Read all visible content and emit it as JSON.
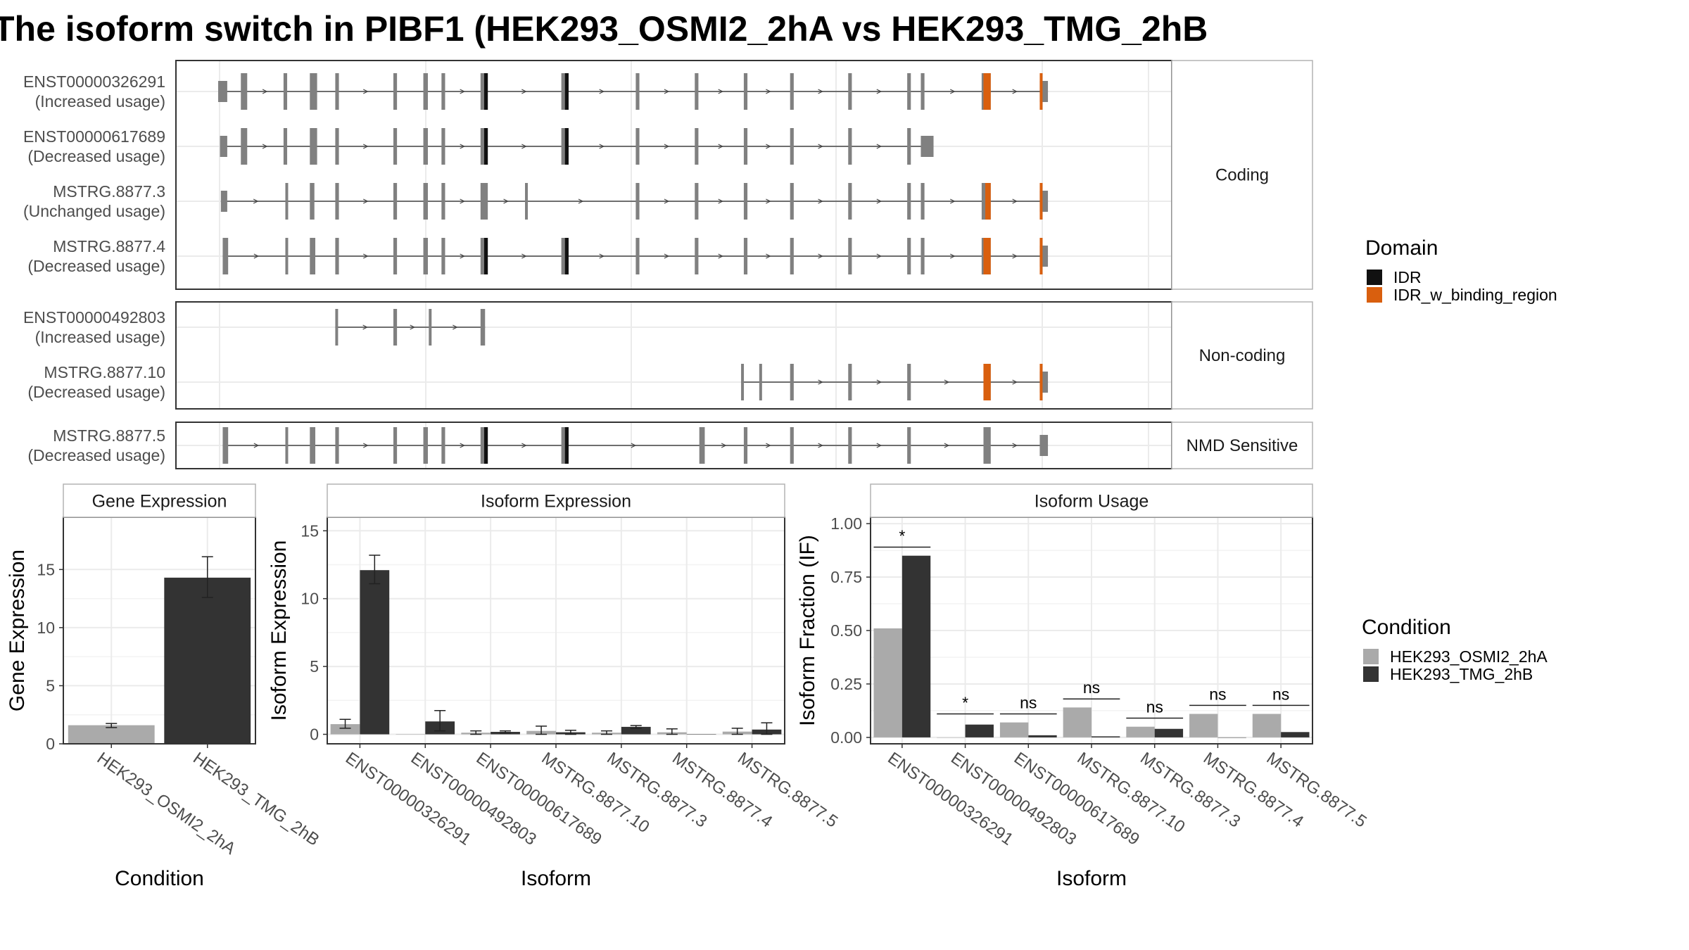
{
  "title": "The isoform switch in PIBF1 (HEK293_OSMI2_2hA vs HEK293_TMG_2hB",
  "colors": {
    "exon": "#808080",
    "idr": "#111111",
    "idr_binding": "#d95f0e",
    "osmi": "#aaaaaa",
    "tmg": "#333333",
    "grid": "#ebebeb",
    "border": "#333333"
  },
  "domain_legend": {
    "title": "Domain",
    "items": [
      {
        "label": "IDR",
        "color": "#111111"
      },
      {
        "label": "IDR_w_binding_region",
        "color": "#d95f0e"
      }
    ]
  },
  "condition_legend": {
    "title": "Condition",
    "items": [
      {
        "label": "HEK293_OSMI2_2hA",
        "color": "#aaaaaa"
      },
      {
        "label": "HEK293_TMG_2hB",
        "color": "#333333"
      }
    ]
  },
  "chart_data": [
    {
      "type": "gene_structure",
      "coordinate_range": [
        0,
        1000
      ],
      "panels": [
        {
          "label": "Coding",
          "isoforms": [
            {
              "id": "ENST00000326291",
              "usage": "(Increased usage)",
              "exons": [
                [
                  0,
                  10
                ],
                [
                  25,
                  32
                ],
                [
                  72,
                  76
                ],
                [
                  101,
                  109
                ],
                [
                  129,
                  133
                ],
                [
                  193,
                  197
                ],
                [
                  226,
                  231
                ],
                [
                  246,
                  250
                ],
                [
                  289,
                  297
                ],
                [
                  378,
                  386
                ],
                [
                  460,
                  464
                ],
                [
                  525,
                  529
                ],
                [
                  579,
                  583
                ],
                [
                  630,
                  634
                ],
                [
                  694,
                  698
                ],
                [
                  759,
                  763
                ],
                [
                  774,
                  778
                ],
                [
                  841,
                  851
                ],
                [
                  905,
                  914
                ]
              ],
              "domains": [
                {
                  "type": "idr",
                  "range": [
                    293,
                    297
                  ]
                },
                {
                  "type": "idr",
                  "range": [
                    382,
                    386
                  ]
                },
                {
                  "type": "idr_binding",
                  "range": [
                    843,
                    851
                  ]
                },
                {
                  "type": "idr_binding",
                  "range": [
                    905,
                    908
                  ]
                }
              ]
            },
            {
              "id": "ENST00000617689",
              "usage": "(Decreased usage)",
              "exons": [
                [
                  2,
                  10
                ],
                [
                  25,
                  32
                ],
                [
                  72,
                  76
                ],
                [
                  101,
                  109
                ],
                [
                  129,
                  133
                ],
                [
                  193,
                  197
                ],
                [
                  226,
                  231
                ],
                [
                  246,
                  250
                ],
                [
                  289,
                  297
                ],
                [
                  378,
                  386
                ],
                [
                  460,
                  464
                ],
                [
                  525,
                  529
                ],
                [
                  579,
                  583
                ],
                [
                  630,
                  634
                ],
                [
                  694,
                  698
                ],
                [
                  759,
                  763
                ],
                [
                  774,
                  788
                ]
              ],
              "domains": [
                {
                  "type": "idr",
                  "range": [
                    293,
                    297
                  ]
                },
                {
                  "type": "idr",
                  "range": [
                    382,
                    386
                  ]
                }
              ]
            },
            {
              "id": "MSTRG.8877.3",
              "usage": "(Unchanged usage)",
              "exons": [
                [
                  3,
                  10
                ],
                [
                  74,
                  76
                ],
                [
                  101,
                  106
                ],
                [
                  129,
                  133
                ],
                [
                  193,
                  197
                ],
                [
                  226,
                  231
                ],
                [
                  246,
                  250
                ],
                [
                  289,
                  297
                ],
                [
                  338,
                  340
                ],
                [
                  460,
                  464
                ],
                [
                  525,
                  529
                ],
                [
                  579,
                  583
                ],
                [
                  630,
                  634
                ],
                [
                  694,
                  698
                ],
                [
                  759,
                  763
                ],
                [
                  774,
                  778
                ],
                [
                  841,
                  851
                ],
                [
                  905,
                  914
                ]
              ],
              "domains": [
                {
                  "type": "idr_binding",
                  "range": [
                    845,
                    851
                  ]
                },
                {
                  "type": "idr_binding",
                  "range": [
                    905,
                    908
                  ]
                }
              ]
            },
            {
              "id": "MSTRG.8877.4",
              "usage": "(Decreased usage)",
              "exons": [
                [
                  5,
                  11
                ],
                [
                  74,
                  77
                ],
                [
                  101,
                  107
                ],
                [
                  129,
                  133
                ],
                [
                  193,
                  197
                ],
                [
                  226,
                  231
                ],
                [
                  246,
                  250
                ],
                [
                  289,
                  297
                ],
                [
                  378,
                  386
                ],
                [
                  460,
                  464
                ],
                [
                  525,
                  529
                ],
                [
                  579,
                  583
                ],
                [
                  630,
                  634
                ],
                [
                  694,
                  698
                ],
                [
                  759,
                  763
                ],
                [
                  774,
                  778
                ],
                [
                  841,
                  851
                ],
                [
                  905,
                  914
                ]
              ],
              "domains": [
                {
                  "type": "idr",
                  "range": [
                    293,
                    297
                  ]
                },
                {
                  "type": "idr",
                  "range": [
                    382,
                    386
                  ]
                },
                {
                  "type": "idr_binding",
                  "range": [
                    843,
                    851
                  ]
                },
                {
                  "type": "idr_binding",
                  "range": [
                    905,
                    908
                  ]
                }
              ]
            }
          ]
        },
        {
          "label": "Non-coding",
          "isoforms": [
            {
              "id": "ENST00000492803",
              "usage": "(Increased usage)",
              "exons": [
                [
                  129,
                  132
                ],
                [
                  193,
                  197
                ],
                [
                  232,
                  234
                ],
                [
                  289,
                  294
                ]
              ],
              "domains": []
            },
            {
              "id": "MSTRG.8877.10",
              "usage": "(Decreased usage)",
              "exons": [
                [
                  576,
                  578
                ],
                [
                  596,
                  599
                ],
                [
                  630,
                  634
                ],
                [
                  694,
                  698
                ],
                [
                  759,
                  763
                ],
                [
                  843,
                  851
                ],
                [
                  905,
                  914
                ]
              ],
              "domains": [
                {
                  "type": "idr_binding",
                  "range": [
                    843,
                    851
                  ]
                },
                {
                  "type": "idr_binding",
                  "range": [
                    905,
                    908
                  ]
                }
              ]
            }
          ]
        },
        {
          "label": "NMD Sensitive",
          "isoforms": [
            {
              "id": "MSTRG.8877.5",
              "usage": "(Decreased usage)",
              "exons": [
                [
                  5,
                  11
                ],
                [
                  74,
                  77
                ],
                [
                  101,
                  107
                ],
                [
                  129,
                  133
                ],
                [
                  193,
                  197
                ],
                [
                  226,
                  231
                ],
                [
                  246,
                  250
                ],
                [
                  289,
                  297
                ],
                [
                  378,
                  386
                ],
                [
                  530,
                  536
                ],
                [
                  579,
                  583
                ],
                [
                  630,
                  634
                ],
                [
                  694,
                  698
                ],
                [
                  759,
                  763
                ],
                [
                  843,
                  851
                ],
                [
                  905,
                  914
                ]
              ],
              "domains": [
                {
                  "type": "idr",
                  "range": [
                    293,
                    297
                  ]
                },
                {
                  "type": "idr",
                  "range": [
                    382,
                    386
                  ]
                }
              ]
            }
          ]
        }
      ]
    },
    {
      "type": "bar",
      "title": "Gene Expression",
      "xlabel": "Condition",
      "ylabel": "Gene Expression",
      "ylim": [
        0,
        19.5
      ],
      "yticks": [
        0,
        5,
        10,
        15
      ],
      "categories": [
        "HEK293_OSMI2_2hA",
        "HEK293_TMG_2hB"
      ],
      "values": [
        1.6,
        14.3
      ],
      "errors": [
        [
          1.4,
          1.75
        ],
        [
          12.6,
          16.1
        ]
      ]
    },
    {
      "type": "bar",
      "title": "Isoform Expression",
      "xlabel": "Isoform",
      "ylabel": "Isoform Expression",
      "ylim": [
        -0.7,
        16
      ],
      "yticks": [
        0,
        5,
        10,
        15
      ],
      "categories": [
        "ENST00000326291",
        "ENST00000492803",
        "ENST00000617689",
        "MSTRG.8877.10",
        "MSTRG.8877.3",
        "MSTRG.8877.4",
        "MSTRG.8877.5"
      ],
      "series": [
        {
          "name": "HEK293_OSMI2_2hA",
          "values": [
            0.75,
            0.0,
            0.12,
            0.25,
            0.12,
            0.15,
            0.2
          ],
          "errors": [
            [
              0.45,
              1.1
            ],
            [
              0,
              0
            ],
            [
              0.0,
              0.25
            ],
            [
              0.0,
              0.6
            ],
            [
              0.0,
              0.25
            ],
            [
              0.0,
              0.4
            ],
            [
              0.0,
              0.45
            ]
          ]
        },
        {
          "name": "HEK293_TMG_2hB",
          "values": [
            12.1,
            0.95,
            0.18,
            0.15,
            0.55,
            0.0,
            0.35
          ],
          "errors": [
            [
              11.1,
              13.2
            ],
            [
              0.25,
              1.75
            ],
            [
              0.1,
              0.25
            ],
            [
              0.0,
              0.3
            ],
            [
              0.45,
              0.65
            ],
            [
              0,
              0
            ],
            [
              0.0,
              0.85
            ]
          ]
        }
      ]
    },
    {
      "type": "bar",
      "title": "Isoform Usage",
      "xlabel": "Isoform",
      "ylabel": "Isoform Fraction (IF)",
      "ylim": [
        -0.03,
        1.03
      ],
      "yticks": [
        0.0,
        0.25,
        0.5,
        0.75,
        1.0
      ],
      "ytick_labels": [
        "0.00",
        "0.25",
        "0.50",
        "0.75",
        "1.00"
      ],
      "categories": [
        "ENST00000326291",
        "ENST00000492803",
        "ENST00000617689",
        "MSTRG.8877.10",
        "MSTRG.8877.3",
        "MSTRG.8877.4",
        "MSTRG.8877.5"
      ],
      "series": [
        {
          "name": "HEK293_OSMI2_2hA",
          "values": [
            0.51,
            0.0,
            0.07,
            0.14,
            0.05,
            0.11,
            0.11
          ]
        },
        {
          "name": "HEK293_TMG_2hB",
          "values": [
            0.85,
            0.06,
            0.01,
            0.005,
            0.04,
            0.0,
            0.025
          ]
        }
      ],
      "significance": [
        {
          "label": "*",
          "y": 0.89
        },
        {
          "label": "*",
          "y": 0.11
        },
        {
          "label": "ns",
          "y": 0.11
        },
        {
          "label": "ns",
          "y": 0.18
        },
        {
          "label": "ns",
          "y": 0.09
        },
        {
          "label": "ns",
          "y": 0.15
        },
        {
          "label": "ns",
          "y": 0.15
        }
      ]
    }
  ]
}
